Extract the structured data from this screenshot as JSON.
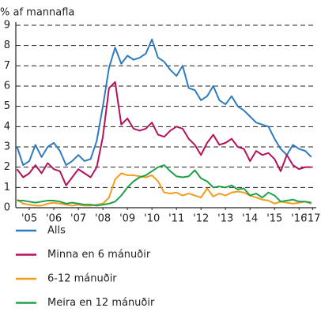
{
  "chart_data": {
    "type": "line",
    "ylabel": "% af mannafla",
    "x": [
      2005,
      2005.25,
      2005.5,
      2005.75,
      2006,
      2006.25,
      2006.5,
      2006.75,
      2007,
      2007.25,
      2007.5,
      2007.75,
      2008,
      2008.25,
      2008.5,
      2008.75,
      2009,
      2009.25,
      2009.5,
      2009.75,
      2010,
      2010.25,
      2010.5,
      2010.75,
      2011,
      2011.25,
      2011.5,
      2011.75,
      2012,
      2012.25,
      2012.5,
      2012.75,
      2013,
      2013.25,
      2013.5,
      2013.75,
      2014,
      2014.25,
      2014.5,
      2014.75,
      2015,
      2015.25,
      2015.5,
      2015.75,
      2016,
      2016.25,
      2016.5,
      2016.75,
      2017
    ],
    "xlim": [
      2004.95,
      2017.2
    ],
    "xticks": [
      {
        "value": 2005.5,
        "label": "'05"
      },
      {
        "value": 2006.5,
        "label": "'06"
      },
      {
        "value": 2007.5,
        "label": "'07"
      },
      {
        "value": 2008.5,
        "label": "'08"
      },
      {
        "value": 2009.5,
        "label": "'09"
      },
      {
        "value": 2010.5,
        "label": "'10"
      },
      {
        "value": 2011.5,
        "label": "'11"
      },
      {
        "value": 2012.5,
        "label": "'12"
      },
      {
        "value": 2013.5,
        "label": "'13"
      },
      {
        "value": 2014.5,
        "label": "'14"
      },
      {
        "value": 2015.5,
        "label": "'15"
      },
      {
        "value": 2016.5,
        "label": "'16"
      },
      {
        "value": 2017.05,
        "label": "'17"
      }
    ],
    "ylim": [
      0,
      9
    ],
    "yticks": [
      0,
      1,
      2,
      3,
      4,
      5,
      6,
      7,
      8,
      9
    ],
    "grid": true,
    "series": [
      {
        "name": "Alls",
        "color": "#2e7bbf",
        "values": [
          3.0,
          2.1,
          2.3,
          3.1,
          2.5,
          3.0,
          3.2,
          2.8,
          2.1,
          2.3,
          2.6,
          2.3,
          2.4,
          3.3,
          5.0,
          6.9,
          7.9,
          7.1,
          7.5,
          7.3,
          7.4,
          7.6,
          8.3,
          7.4,
          7.2,
          6.8,
          6.5,
          7.0,
          5.9,
          5.8,
          5.3,
          5.5,
          6.0,
          5.3,
          5.1,
          5.5,
          5.0,
          4.8,
          4.5,
          4.2,
          4.1,
          4.0,
          3.4,
          2.9,
          2.6,
          3.1,
          2.9,
          2.8,
          2.5
        ]
      },
      {
        "name": "Minna en 6 mánuðir",
        "color": "#b5125b",
        "values": [
          1.9,
          1.5,
          1.7,
          2.1,
          1.7,
          2.2,
          1.9,
          1.8,
          1.1,
          1.5,
          1.9,
          1.7,
          1.5,
          2.0,
          3.5,
          5.9,
          6.2,
          4.1,
          4.4,
          3.9,
          3.8,
          3.9,
          4.2,
          3.6,
          3.5,
          3.8,
          4.0,
          3.9,
          3.4,
          3.1,
          2.6,
          3.2,
          3.6,
          3.1,
          3.2,
          3.4,
          3.0,
          2.9,
          2.3,
          2.8,
          2.6,
          2.7,
          2.4,
          1.8,
          2.6,
          2.1,
          1.9,
          2.0,
          2.0
        ]
      },
      {
        "name": "6-12 mánuðir",
        "color": "#f39c1f",
        "values": [
          0.4,
          0.2,
          0.15,
          0.1,
          0.1,
          0.2,
          0.25,
          0.2,
          0.15,
          0.1,
          0.15,
          0.1,
          0.1,
          0.15,
          0.2,
          0.5,
          1.4,
          1.7,
          1.6,
          1.6,
          1.55,
          1.5,
          1.6,
          1.3,
          0.75,
          0.7,
          0.75,
          0.6,
          0.7,
          0.6,
          0.5,
          0.95,
          0.55,
          0.7,
          0.6,
          0.75,
          0.8,
          0.75,
          0.6,
          0.5,
          0.4,
          0.35,
          0.2,
          0.3,
          0.25,
          0.2,
          0.25,
          0.3,
          0.2
        ]
      },
      {
        "name": "Meira en 12 mánuðir",
        "color": "#1fa04a",
        "values": [
          0.35,
          0.35,
          0.3,
          0.25,
          0.3,
          0.35,
          0.35,
          0.3,
          0.2,
          0.25,
          0.2,
          0.15,
          0.15,
          0.1,
          0.15,
          0.2,
          0.3,
          0.6,
          1.0,
          1.3,
          1.5,
          1.6,
          1.8,
          2.0,
          2.1,
          1.8,
          1.55,
          1.5,
          1.55,
          1.85,
          1.45,
          1.3,
          1.0,
          1.05,
          1.0,
          1.1,
          0.9,
          0.95,
          0.6,
          0.7,
          0.5,
          0.75,
          0.6,
          0.3,
          0.35,
          0.4,
          0.3,
          0.3,
          0.25
        ]
      }
    ]
  }
}
